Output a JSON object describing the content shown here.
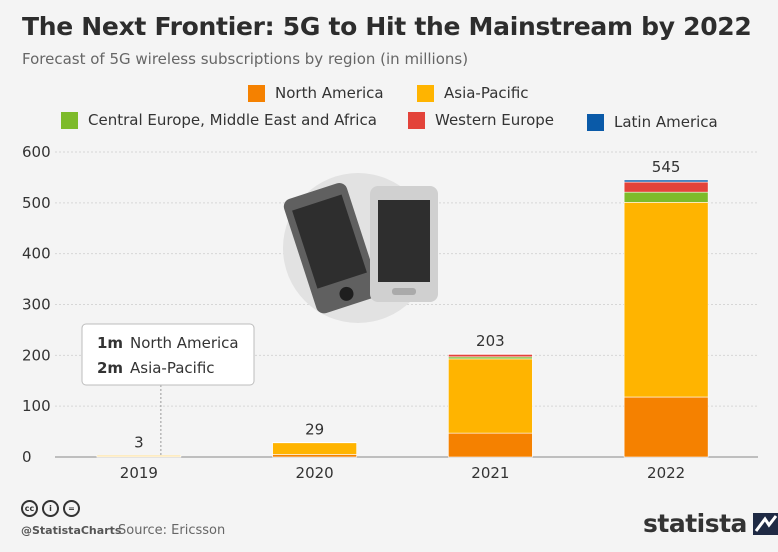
{
  "title": "The Next Frontier: 5G to Hit the Mainstream by 2022",
  "subtitle": "Forecast of 5G wireless subscriptions by region (in millions)",
  "legend": [
    {
      "name": "North America",
      "color": "#f58100"
    },
    {
      "name": "Asia-Pacific",
      "color": "#ffb400"
    },
    {
      "name": "Central Europe, Middle East and Africa",
      "color": "#7dbb2a"
    },
    {
      "name": "Western Europe",
      "color": "#e3433a"
    },
    {
      "name": "Latin America",
      "color": "#0a5aa8"
    }
  ],
  "chart_data": {
    "type": "bar",
    "stacked": true,
    "title": "The Next Frontier: 5G to Hit the Mainstream by 2022",
    "ylabel": "",
    "xlabel": "",
    "ylim": [
      0,
      600
    ],
    "yticks": [
      0,
      100,
      200,
      300,
      400,
      500,
      600
    ],
    "categories": [
      "2019",
      "2020",
      "2021",
      "2022"
    ],
    "totals": [
      "3",
      "29",
      "203",
      "545"
    ],
    "series": [
      {
        "name": "North America",
        "color": "#f58100",
        "values": [
          1,
          5,
          47,
          118
        ]
      },
      {
        "name": "Asia-Pacific",
        "color": "#ffb400",
        "values": [
          2,
          23,
          146,
          383
        ]
      },
      {
        "name": "Central Europe, Middle East and Africa",
        "color": "#7dbb2a",
        "values": [
          0,
          0,
          4,
          20
        ]
      },
      {
        "name": "Western Europe",
        "color": "#e3433a",
        "values": [
          0,
          1,
          5,
          20
        ]
      },
      {
        "name": "Latin America",
        "color": "#0a5aa8",
        "values": [
          0,
          0,
          1,
          4
        ]
      }
    ],
    "annotation": {
      "category": "2019",
      "lines": [
        {
          "value": "1m",
          "label": "North America"
        },
        {
          "value": "2m",
          "label": "Asia-Pacific"
        }
      ]
    }
  },
  "footer": {
    "handle": "@StatistaCharts",
    "source": "Source: Ericsson",
    "brand": "statista",
    "license_icons": [
      "cc",
      "by",
      "nd"
    ]
  }
}
